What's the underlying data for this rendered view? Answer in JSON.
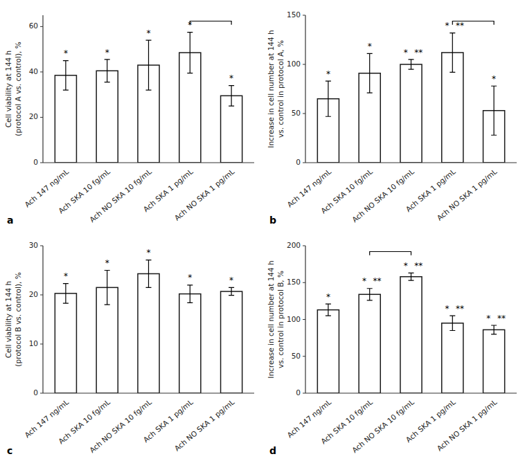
{
  "chart_data": [
    {
      "type": "bar",
      "title": "a",
      "categories": [
        "Ach 147 ng/mL",
        "Ach SKA 10 fg/mL",
        "Ach NO SKA 10 fg/mL",
        "Ach SKA 1 pg/mL",
        "Ach NO SKA 1 pg/mL"
      ],
      "values": [
        38.5,
        40.5,
        43.0,
        48.5,
        29.5
      ],
      "errors": [
        6.5,
        5.0,
        11.0,
        9.0,
        4.5
      ],
      "ylabel": "Cell viability at 144 h\n(protocol A vs. control), %",
      "ylim": [
        0,
        65
      ],
      "yticks": [
        0,
        20,
        40,
        60
      ],
      "stars": [
        [
          "*"
        ],
        [
          "*"
        ],
        [
          "*"
        ],
        [
          "*"
        ],
        [
          "*"
        ]
      ],
      "bracket": [
        3,
        4
      ],
      "color": "#ffffff",
      "grid": false
    },
    {
      "type": "bar",
      "title": "b",
      "categories": [
        "Ach 147 ng/mL",
        "Ach SKA 10 fg/mL",
        "Ach NO SKA 10 fg/mL",
        "Ach SKA 1 pg/mL",
        "Ach NO SKA 1 pg/mL"
      ],
      "values": [
        65,
        91,
        100,
        112,
        53
      ],
      "errors": [
        18,
        20,
        5,
        20,
        25
      ],
      "ylabel": "Increase in cell number at 144 h\nvs. control in protocol A, %",
      "ylim": [
        0,
        150
      ],
      "yticks": [
        0,
        50,
        100,
        150
      ],
      "stars": [
        [
          "*"
        ],
        [
          "*"
        ],
        [
          "*",
          "**"
        ],
        [
          "*",
          "**"
        ],
        [
          "*"
        ]
      ],
      "bracket": [
        3,
        4
      ],
      "color": "#ffffff",
      "grid": false
    },
    {
      "type": "bar",
      "title": "c",
      "categories": [
        "Ach 147 ng/mL",
        "Ach SKA 10 fg/mL",
        "Ach NO SKA 10 fg/mL",
        "Ach SKA 1 pg/mL",
        "Ach NO SKA 1 pg/mL"
      ],
      "values": [
        20.3,
        21.5,
        24.3,
        20.2,
        20.7
      ],
      "errors": [
        2.0,
        3.5,
        2.8,
        1.8,
        0.8
      ],
      "ylabel": "Cell viability at 144 h\n(protocol B vs. control), %",
      "ylim": [
        0,
        30
      ],
      "yticks": [
        0,
        10,
        20,
        30
      ],
      "stars": [
        [
          "*"
        ],
        [
          "*"
        ],
        [
          "*"
        ],
        [
          "*"
        ],
        [
          "*"
        ]
      ],
      "color": "#ffffff",
      "grid": false
    },
    {
      "type": "bar",
      "title": "d",
      "categories": [
        "Ach 147 ng/mL",
        "Ach SKA 10 fg/mL",
        "Ach NO SKA 10 fg/mL",
        "Ach SKA 1 pg/mL",
        "Ach NO SKA 1 pg/mL"
      ],
      "values": [
        113,
        134,
        158,
        95,
        86
      ],
      "errors": [
        8,
        8,
        5,
        10,
        6
      ],
      "ylabel": "Increase in cell number at 144 h\nvs. control in protocol B, %",
      "ylim": [
        0,
        200
      ],
      "yticks": [
        0,
        50,
        100,
        150,
        200
      ],
      "stars": [
        [
          "*"
        ],
        [
          "*",
          "**"
        ],
        [
          "*",
          "**"
        ],
        [
          "*",
          "**"
        ],
        [
          "*",
          "**"
        ]
      ],
      "bracket": [
        1,
        2
      ],
      "color": "#ffffff",
      "grid": false
    }
  ]
}
